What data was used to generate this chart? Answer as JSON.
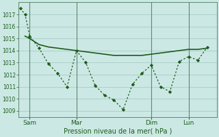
{
  "xlabel": "Pression niveau de la mer( hPa )",
  "bg_color": "#cce8e4",
  "grid_color": "#aacfca",
  "line_color": "#1a5c1a",
  "ylim": [
    1008.5,
    1018.0
  ],
  "yticks": [
    1009,
    1010,
    1011,
    1012,
    1013,
    1014,
    1015,
    1016,
    1017
  ],
  "xtick_labels": [
    "Sam",
    "Mar",
    "Dim",
    "Lun"
  ],
  "xtick_positions": [
    1,
    6,
    14,
    18
  ],
  "xlim": [
    -0.2,
    21.0
  ],
  "series1_x": [
    0,
    0.5,
    1,
    2,
    3,
    4,
    5,
    6,
    7,
    8,
    9,
    10,
    11,
    12,
    13,
    14,
    15,
    16,
    17,
    18,
    19,
    20
  ],
  "series1_y": [
    1017.5,
    1017.0,
    1015.2,
    1014.2,
    1012.9,
    1012.1,
    1011.0,
    1014.0,
    1013.0,
    1011.1,
    1010.3,
    1009.9,
    1009.1,
    1011.2,
    1012.1,
    1012.8,
    1011.0,
    1010.6,
    1013.1,
    1013.5,
    1013.2,
    1014.3
  ],
  "series2_x": [
    0.5,
    1,
    2,
    3,
    4,
    5,
    6,
    7,
    8,
    9,
    10,
    11,
    12,
    13,
    14,
    15,
    16,
    17,
    18,
    19,
    20
  ],
  "series2_y": [
    1015.2,
    1015.0,
    1014.5,
    1014.3,
    1014.2,
    1014.1,
    1014.0,
    1013.9,
    1013.8,
    1013.7,
    1013.6,
    1013.6,
    1013.6,
    1013.6,
    1013.7,
    1013.8,
    1013.9,
    1014.0,
    1014.1,
    1014.1,
    1014.2
  ],
  "vline_positions": [
    1,
    6,
    14,
    18
  ]
}
